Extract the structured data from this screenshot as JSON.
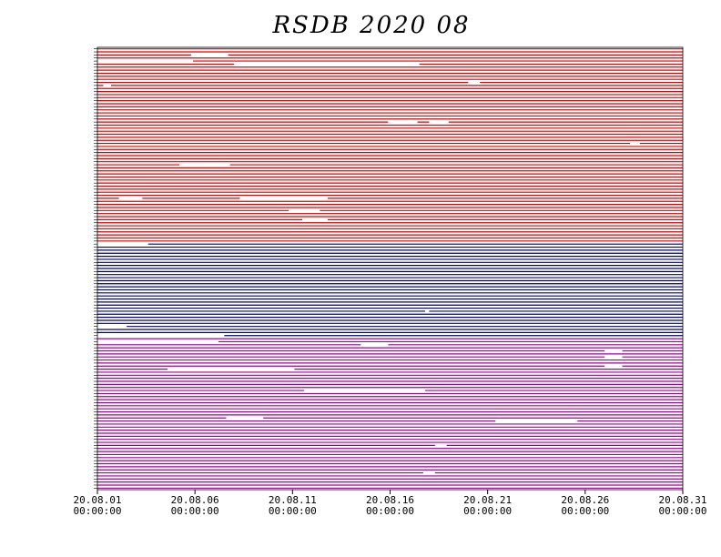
{
  "chart_data": {
    "type": "availability",
    "title": "RSDB  2020  08",
    "xlim": [
      0,
      30
    ],
    "xticks": [
      {
        "value": 0,
        "label": [
          "20.08.01",
          "00:00:00"
        ]
      },
      {
        "value": 5,
        "label": [
          "20.08.06",
          "00:00:00"
        ]
      },
      {
        "value": 10,
        "label": [
          "20.08.11",
          "00:00:00"
        ]
      },
      {
        "value": 15,
        "label": [
          "20.08.16",
          "00:00:00"
        ]
      },
      {
        "value": 20,
        "label": [
          "20.08.21",
          "00:00:00"
        ]
      },
      {
        "value": 25,
        "label": [
          "20.08.26",
          "00:00:00"
        ]
      },
      {
        "value": 30,
        "label": [
          "20.08.31",
          "00:00:00"
        ]
      }
    ],
    "groups": [
      {
        "color": "#e00000",
        "rows": 64,
        "gaps": [
          {
            "row": 2,
            "from": 4.8,
            "to": 6.7
          },
          {
            "row": 4,
            "from": 0,
            "to": 4.9
          },
          {
            "row": 5,
            "from": 7.0,
            "to": 16.5
          },
          {
            "row": 11,
            "from": 19.0,
            "to": 19.6
          },
          {
            "row": 12,
            "from": 0.3,
            "to": 0.7
          },
          {
            "row": 24,
            "from": 14.9,
            "to": 16.4
          },
          {
            "row": 24,
            "from": 17.0,
            "to": 18.0
          },
          {
            "row": 31,
            "from": 27.3,
            "to": 27.8
          },
          {
            "row": 38,
            "from": 4.2,
            "to": 6.8
          },
          {
            "row": 49,
            "from": 7.3,
            "to": 11.8
          },
          {
            "row": 53,
            "from": 9.8,
            "to": 11.4
          },
          {
            "row": 56,
            "from": 10.5,
            "to": 11.8
          },
          {
            "row": 49,
            "from": 1.1,
            "to": 2.3
          }
        ]
      },
      {
        "color": "#00007a",
        "rows": 31,
        "gaps": [
          {
            "row": 0,
            "from": 0,
            "to": 2.6
          },
          {
            "row": 22,
            "from": 16.8,
            "to": 17.0
          },
          {
            "row": 27,
            "from": 0,
            "to": 1.5
          },
          {
            "row": 30,
            "from": 0,
            "to": 6.5
          }
        ]
      },
      {
        "color": "#a0009a",
        "rows": 50,
        "gaps": [
          {
            "row": 1,
            "from": 0,
            "to": 6.2
          },
          {
            "row": 2,
            "from": 13.5,
            "to": 14.9
          },
          {
            "row": 4,
            "from": 26.0,
            "to": 26.9
          },
          {
            "row": 6,
            "from": 26.0,
            "to": 26.9
          },
          {
            "row": 9,
            "from": 26.0,
            "to": 26.9
          },
          {
            "row": 10,
            "from": 3.6,
            "to": 10.1
          },
          {
            "row": 17,
            "from": 10.6,
            "to": 16.8
          },
          {
            "row": 26,
            "from": 6.6,
            "to": 8.5
          },
          {
            "row": 27,
            "from": 20.4,
            "to": 24.6
          },
          {
            "row": 35,
            "from": 17.3,
            "to": 17.9
          },
          {
            "row": 44,
            "from": 16.7,
            "to": 17.3
          }
        ]
      }
    ]
  }
}
